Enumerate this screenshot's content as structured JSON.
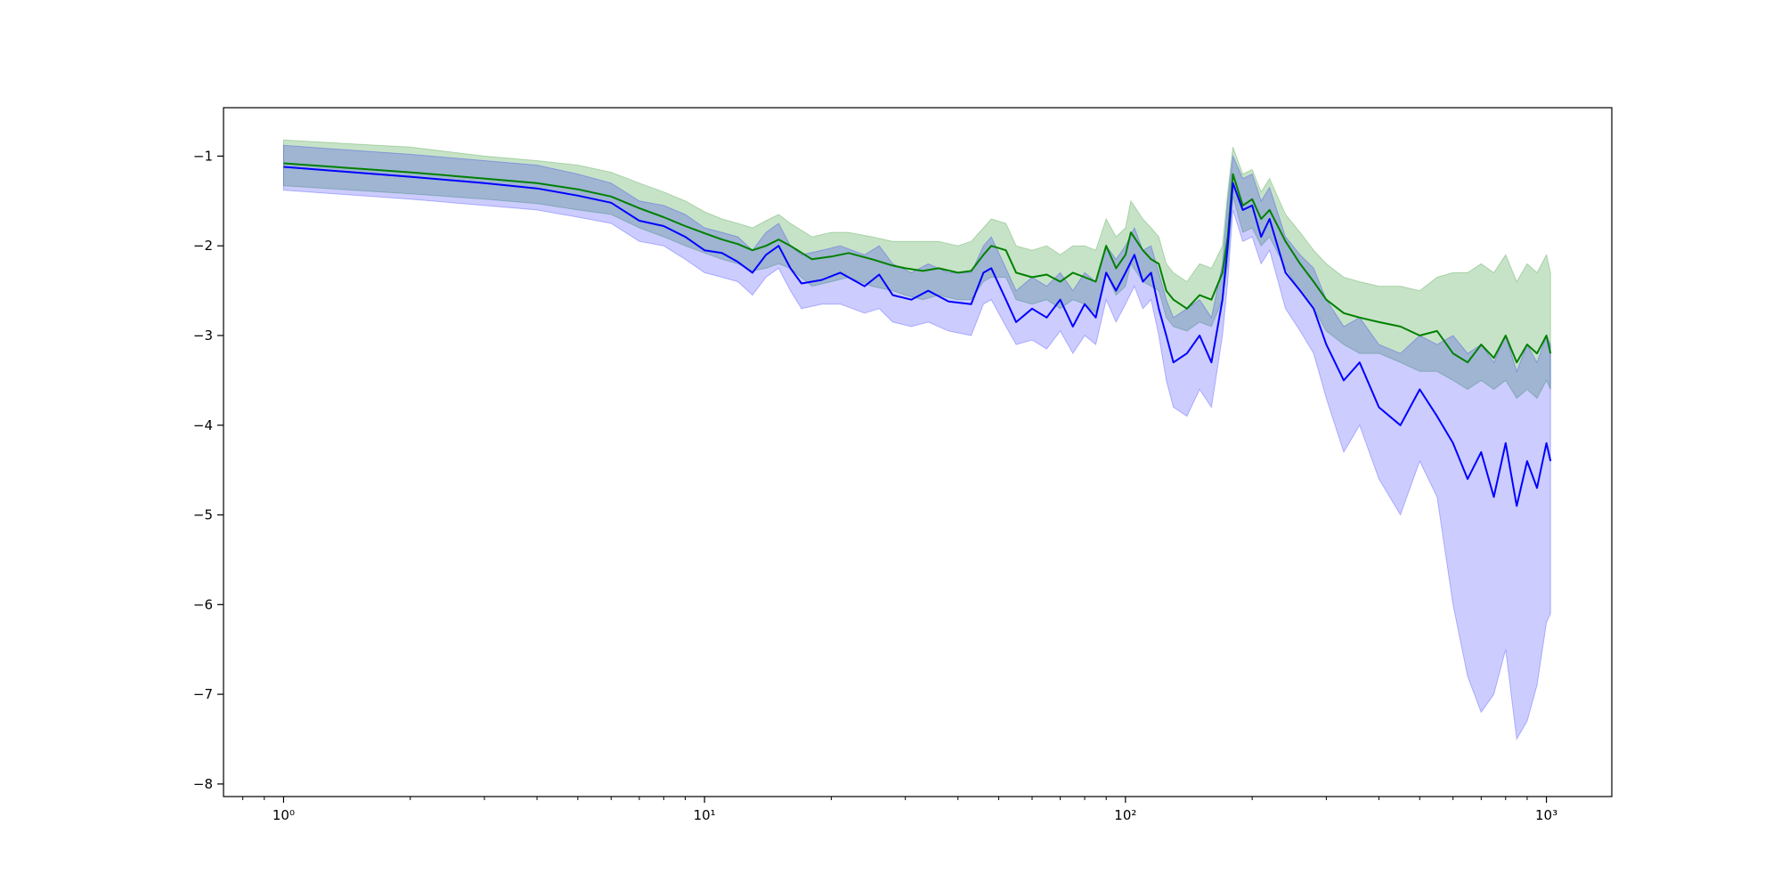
{
  "chart_data": {
    "type": "line",
    "title": "",
    "xlabel": "",
    "ylabel": "",
    "xscale": "log",
    "xlim": [
      0.72,
      1430
    ],
    "ylim": [
      -8.14,
      -0.46
    ],
    "grid": false,
    "legend": "none",
    "x_ticks": [
      {
        "value": 1,
        "label": "10⁰"
      },
      {
        "value": 10,
        "label": "10¹"
      },
      {
        "value": 100,
        "label": "10²"
      },
      {
        "value": 1000,
        "label": "10³"
      }
    ],
    "y_ticks": [
      {
        "value": -1,
        "label": "−1"
      },
      {
        "value": -2,
        "label": "−2"
      },
      {
        "value": -3,
        "label": "−3"
      },
      {
        "value": -4,
        "label": "−4"
      },
      {
        "value": -5,
        "label": "−5"
      },
      {
        "value": -6,
        "label": "−6"
      },
      {
        "value": -7,
        "label": "−7"
      },
      {
        "value": -8,
        "label": "−8"
      }
    ],
    "series": [
      {
        "color": "#008000",
        "band_color": "#008000",
        "band_opacity": 0.22,
        "points": [
          [
            1,
            -1.08,
            -0.82,
            -1.33
          ],
          [
            2,
            -1.18,
            -0.9,
            -1.42
          ],
          [
            3,
            -1.25,
            -1.0,
            -1.48
          ],
          [
            4,
            -1.3,
            -1.05,
            -1.53
          ],
          [
            5,
            -1.37,
            -1.1,
            -1.6
          ],
          [
            6,
            -1.45,
            -1.18,
            -1.65
          ],
          [
            7,
            -1.58,
            -1.3,
            -1.8
          ],
          [
            8,
            -1.68,
            -1.4,
            -1.9
          ],
          [
            9,
            -1.78,
            -1.5,
            -2.0
          ],
          [
            10,
            -1.86,
            -1.62,
            -2.08
          ],
          [
            11,
            -1.93,
            -1.7,
            -2.15
          ],
          [
            12,
            -1.98,
            -1.75,
            -2.2
          ],
          [
            13,
            -2.05,
            -1.8,
            -2.28
          ],
          [
            14,
            -2.0,
            -1.72,
            -2.25
          ],
          [
            15,
            -1.93,
            -1.65,
            -2.2
          ],
          [
            16,
            -2.0,
            -1.75,
            -2.25
          ],
          [
            18,
            -2.15,
            -1.9,
            -2.45
          ],
          [
            20,
            -2.12,
            -1.85,
            -2.4
          ],
          [
            22,
            -2.08,
            -1.85,
            -2.35
          ],
          [
            25,
            -2.15,
            -1.9,
            -2.45
          ],
          [
            28,
            -2.22,
            -1.95,
            -2.5
          ],
          [
            30,
            -2.25,
            -1.95,
            -2.55
          ],
          [
            33,
            -2.28,
            -1.95,
            -2.6
          ],
          [
            36,
            -2.25,
            -1.95,
            -2.55
          ],
          [
            40,
            -2.3,
            -2.0,
            -2.6
          ],
          [
            43,
            -2.28,
            -1.95,
            -2.6
          ],
          [
            46,
            -2.1,
            -1.8,
            -2.4
          ],
          [
            48,
            -2.0,
            -1.7,
            -2.35
          ],
          [
            52,
            -2.05,
            -1.75,
            -2.35
          ],
          [
            55,
            -2.3,
            -2.0,
            -2.6
          ],
          [
            60,
            -2.35,
            -2.05,
            -2.65
          ],
          [
            65,
            -2.32,
            -2.0,
            -2.6
          ],
          [
            70,
            -2.4,
            -2.1,
            -2.7
          ],
          [
            75,
            -2.3,
            -2.0,
            -2.6
          ],
          [
            80,
            -2.35,
            -2.0,
            -2.65
          ],
          [
            85,
            -2.4,
            -2.05,
            -2.75
          ],
          [
            90,
            -2.0,
            -1.7,
            -2.3
          ],
          [
            95,
            -2.25,
            -1.9,
            -2.55
          ],
          [
            100,
            -2.1,
            -1.8,
            -2.45
          ],
          [
            103,
            -1.85,
            -1.5,
            -2.2
          ],
          [
            110,
            -2.05,
            -1.7,
            -2.4
          ],
          [
            115,
            -2.15,
            -1.8,
            -2.45
          ],
          [
            120,
            -2.2,
            -1.9,
            -2.5
          ],
          [
            125,
            -2.5,
            -2.2,
            -2.8
          ],
          [
            130,
            -2.6,
            -2.3,
            -2.9
          ],
          [
            140,
            -2.7,
            -2.4,
            -2.95
          ],
          [
            150,
            -2.55,
            -2.2,
            -2.85
          ],
          [
            160,
            -2.6,
            -2.25,
            -2.9
          ],
          [
            170,
            -2.3,
            -2.0,
            -2.6
          ],
          [
            175,
            -1.9,
            -1.4,
            -2.2
          ],
          [
            180,
            -1.2,
            -0.9,
            -1.45
          ],
          [
            190,
            -1.55,
            -1.2,
            -1.85
          ],
          [
            200,
            -1.48,
            -1.15,
            -1.8
          ],
          [
            210,
            -1.7,
            -1.4,
            -2.0
          ],
          [
            220,
            -1.6,
            -1.25,
            -1.9
          ],
          [
            240,
            -1.95,
            -1.65,
            -2.25
          ],
          [
            260,
            -2.2,
            -1.85,
            -2.5
          ],
          [
            280,
            -2.4,
            -2.05,
            -2.7
          ],
          [
            300,
            -2.6,
            -2.2,
            -2.95
          ],
          [
            330,
            -2.75,
            -2.35,
            -3.1
          ],
          [
            360,
            -2.8,
            -2.4,
            -3.2
          ],
          [
            400,
            -2.85,
            -2.45,
            -3.2
          ],
          [
            450,
            -2.9,
            -2.45,
            -3.3
          ],
          [
            500,
            -3.0,
            -2.5,
            -3.4
          ],
          [
            550,
            -2.95,
            -2.35,
            -3.4
          ],
          [
            600,
            -3.2,
            -2.3,
            -3.5
          ],
          [
            650,
            -3.3,
            -2.3,
            -3.6
          ],
          [
            700,
            -3.1,
            -2.2,
            -3.5
          ],
          [
            750,
            -3.25,
            -2.3,
            -3.6
          ],
          [
            800,
            -3.0,
            -2.1,
            -3.5
          ],
          [
            850,
            -3.3,
            -2.4,
            -3.7
          ],
          [
            900,
            -3.1,
            -2.2,
            -3.6
          ],
          [
            950,
            -3.2,
            -2.3,
            -3.7
          ],
          [
            1000,
            -3.0,
            -2.1,
            -3.5
          ],
          [
            1023,
            -3.2,
            -2.3,
            -3.6
          ]
        ]
      },
      {
        "color": "#0000ff",
        "band_color": "#0000ff",
        "band_opacity": 0.2,
        "points": [
          [
            1,
            -1.12,
            -0.88,
            -1.38
          ],
          [
            2,
            -1.23,
            -0.98,
            -1.48
          ],
          [
            3,
            -1.3,
            -1.05,
            -1.55
          ],
          [
            4,
            -1.36,
            -1.1,
            -1.6
          ],
          [
            5,
            -1.44,
            -1.2,
            -1.68
          ],
          [
            6,
            -1.52,
            -1.3,
            -1.75
          ],
          [
            7,
            -1.72,
            -1.5,
            -1.95
          ],
          [
            8,
            -1.78,
            -1.55,
            -2.0
          ],
          [
            9,
            -1.9,
            -1.65,
            -2.15
          ],
          [
            10,
            -2.05,
            -1.8,
            -2.3
          ],
          [
            11,
            -2.08,
            -1.85,
            -2.35
          ],
          [
            12,
            -2.18,
            -1.9,
            -2.4
          ],
          [
            13,
            -2.3,
            -2.05,
            -2.55
          ],
          [
            14,
            -2.1,
            -1.85,
            -2.35
          ],
          [
            15,
            -2.0,
            -1.75,
            -2.25
          ],
          [
            16,
            -2.25,
            -2.0,
            -2.5
          ],
          [
            17,
            -2.42,
            -2.1,
            -2.7
          ],
          [
            19,
            -2.38,
            -2.05,
            -2.65
          ],
          [
            21,
            -2.3,
            -2.0,
            -2.65
          ],
          [
            24,
            -2.45,
            -2.1,
            -2.75
          ],
          [
            26,
            -2.32,
            -2.0,
            -2.7
          ],
          [
            28,
            -2.55,
            -2.2,
            -2.85
          ],
          [
            31,
            -2.6,
            -2.3,
            -2.9
          ],
          [
            34,
            -2.5,
            -2.2,
            -2.85
          ],
          [
            38,
            -2.62,
            -2.3,
            -2.95
          ],
          [
            43,
            -2.65,
            -2.3,
            -3.0
          ],
          [
            46,
            -2.3,
            -2.0,
            -2.65
          ],
          [
            48,
            -2.25,
            -1.9,
            -2.6
          ],
          [
            52,
            -2.6,
            -2.25,
            -2.9
          ],
          [
            55,
            -2.85,
            -2.5,
            -3.1
          ],
          [
            60,
            -2.7,
            -2.35,
            -3.05
          ],
          [
            65,
            -2.8,
            -2.45,
            -3.15
          ],
          [
            70,
            -2.6,
            -2.3,
            -2.95
          ],
          [
            75,
            -2.9,
            -2.5,
            -3.2
          ],
          [
            80,
            -2.65,
            -2.3,
            -3.0
          ],
          [
            85,
            -2.8,
            -2.4,
            -3.1
          ],
          [
            90,
            -2.3,
            -2.0,
            -2.6
          ],
          [
            95,
            -2.5,
            -2.15,
            -2.85
          ],
          [
            100,
            -2.3,
            -2.0,
            -2.65
          ],
          [
            105,
            -2.1,
            -1.8,
            -2.45
          ],
          [
            110,
            -2.4,
            -2.05,
            -2.7
          ],
          [
            115,
            -2.3,
            -2.0,
            -2.6
          ],
          [
            120,
            -2.7,
            -2.3,
            -3.0
          ],
          [
            125,
            -3.0,
            -2.6,
            -3.5
          ],
          [
            130,
            -3.3,
            -2.8,
            -3.8
          ],
          [
            140,
            -3.2,
            -2.7,
            -3.9
          ],
          [
            150,
            -3.0,
            -2.6,
            -3.6
          ],
          [
            160,
            -3.3,
            -2.8,
            -3.8
          ],
          [
            170,
            -2.6,
            -2.2,
            -3.0
          ],
          [
            175,
            -2.0,
            -1.5,
            -2.4
          ],
          [
            180,
            -1.3,
            -1.0,
            -1.6
          ],
          [
            190,
            -1.6,
            -1.25,
            -1.95
          ],
          [
            200,
            -1.55,
            -1.2,
            -1.9
          ],
          [
            210,
            -1.9,
            -1.5,
            -2.2
          ],
          [
            220,
            -1.7,
            -1.35,
            -2.05
          ],
          [
            240,
            -2.3,
            -1.9,
            -2.7
          ],
          [
            260,
            -2.5,
            -2.1,
            -2.95
          ],
          [
            280,
            -2.7,
            -2.25,
            -3.2
          ],
          [
            300,
            -3.1,
            -2.6,
            -3.7
          ],
          [
            330,
            -3.5,
            -2.9,
            -4.3
          ],
          [
            360,
            -3.3,
            -2.8,
            -4.0
          ],
          [
            400,
            -3.8,
            -3.1,
            -4.6
          ],
          [
            450,
            -4.0,
            -3.2,
            -5.0
          ],
          [
            500,
            -3.6,
            -3.0,
            -4.4
          ],
          [
            550,
            -3.9,
            -3.1,
            -4.8
          ],
          [
            600,
            -4.2,
            -3.0,
            -6.0
          ],
          [
            650,
            -4.6,
            -3.2,
            -6.8
          ],
          [
            700,
            -4.3,
            -3.1,
            -7.2
          ],
          [
            750,
            -4.8,
            -3.3,
            -7.0
          ],
          [
            800,
            -4.2,
            -3.0,
            -6.5
          ],
          [
            850,
            -4.9,
            -3.4,
            -7.5
          ],
          [
            900,
            -4.4,
            -3.1,
            -7.3
          ],
          [
            950,
            -4.7,
            -3.3,
            -6.9
          ],
          [
            1000,
            -4.2,
            -3.0,
            -6.2
          ],
          [
            1023,
            -4.4,
            -3.1,
            -6.1
          ]
        ]
      }
    ]
  }
}
